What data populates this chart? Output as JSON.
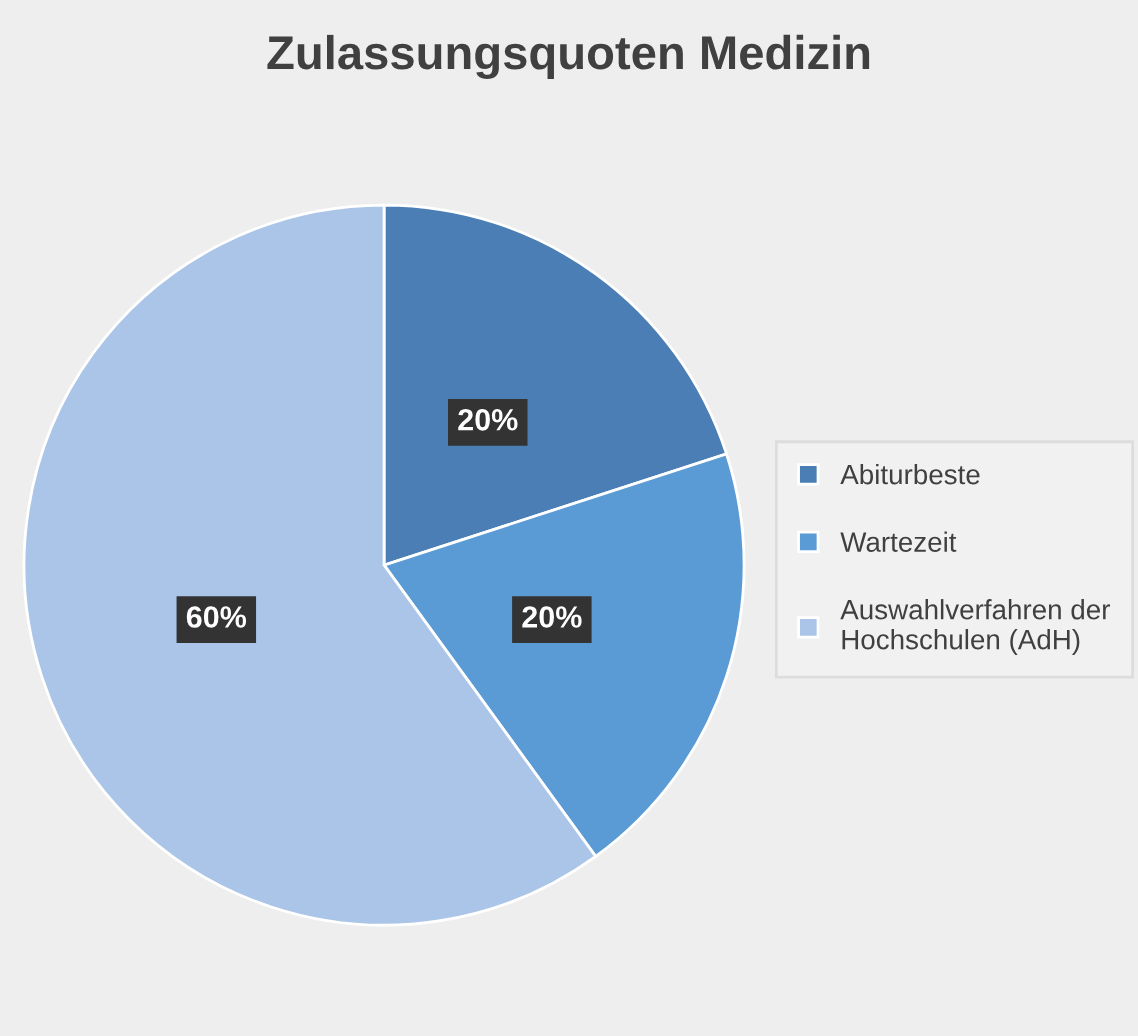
{
  "chart_data": {
    "type": "pie",
    "title": "Zulassungsquoten Medizin",
    "categories": [
      "Abiturbeste",
      "Wartezeit",
      "Auswahlverfahren der\nHochschulen (AdH)"
    ],
    "values": [
      20,
      20,
      60
    ],
    "colors": [
      "#4a7eb4",
      "#5b9bd5",
      "#aac5e7"
    ],
    "value_labels": [
      "20%",
      "20%",
      "60%"
    ],
    "legend": "right"
  }
}
